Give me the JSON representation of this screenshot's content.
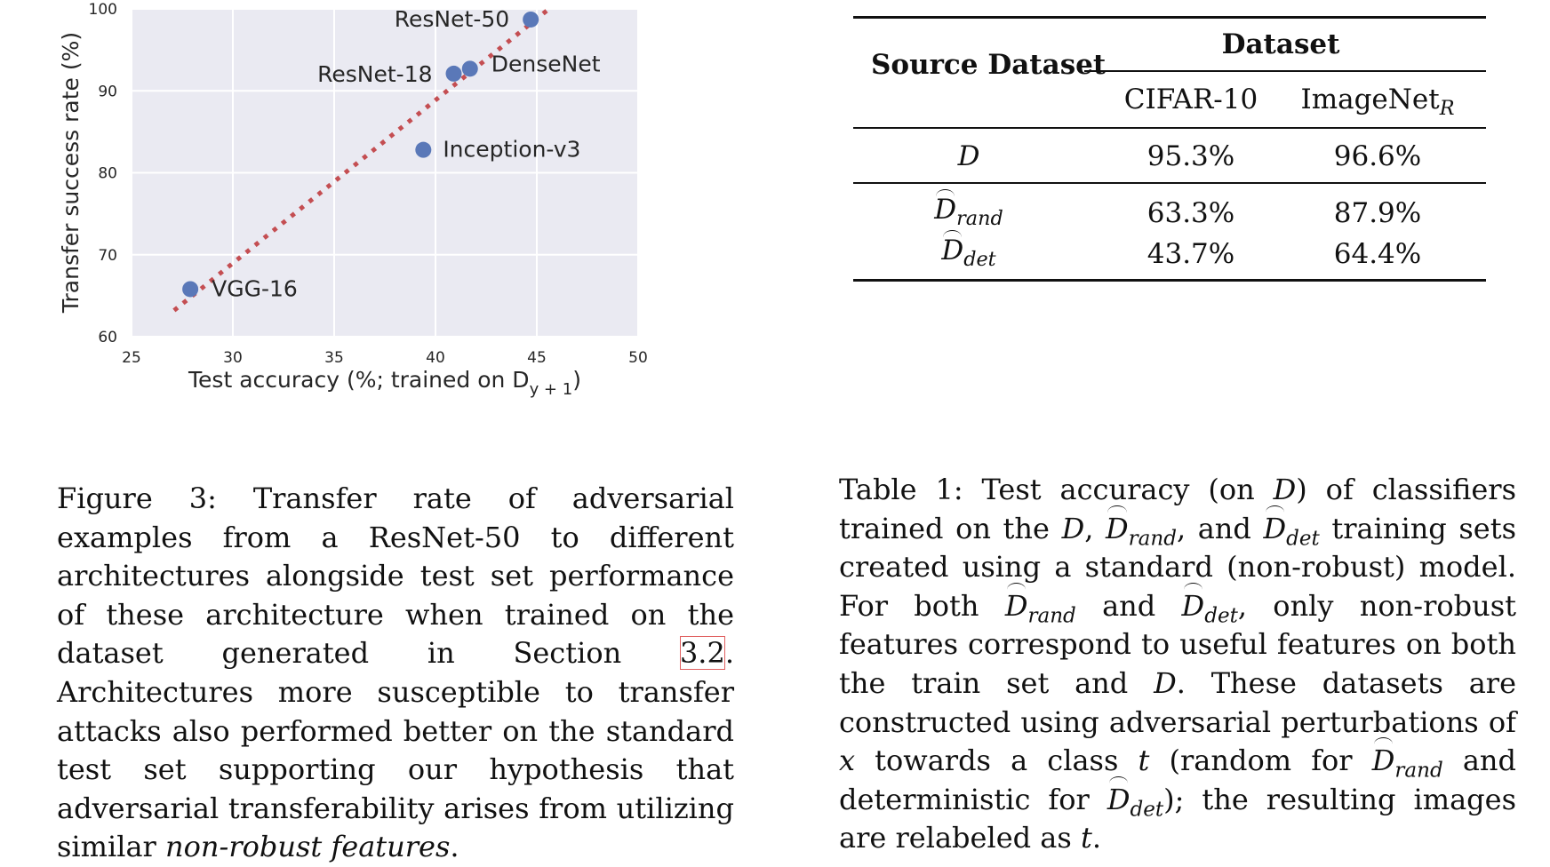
{
  "chart_data": {
    "type": "scatter",
    "xlabel": "Test accuracy (%; trained on D",
    "xlabel_sub": "y + 1",
    "xlabel_close": ")",
    "ylabel": "Transfer success rate (%)",
    "xlim": [
      25,
      50
    ],
    "ylim": [
      60,
      100
    ],
    "xticks": [
      25,
      30,
      35,
      40,
      45,
      50
    ],
    "yticks": [
      60,
      70,
      80,
      90,
      100
    ],
    "grid": true,
    "point_color": "#5a78b8",
    "line_color": "#c44e52",
    "background": "#eaeaf2",
    "points": [
      {
        "name": "ResNet-50",
        "x": 44.7,
        "y": 98.7
      },
      {
        "name": "ResNet-18",
        "x": 40.9,
        "y": 92.1
      },
      {
        "name": "DenseNet",
        "x": 41.7,
        "y": 92.7
      },
      {
        "name": "Inception-v3",
        "x": 39.4,
        "y": 82.8
      },
      {
        "name": "VGG-16",
        "x": 27.9,
        "y": 65.8
      }
    ],
    "fit_line": {
      "x": [
        27.1,
        45.6
      ],
      "y": [
        63.2,
        100
      ]
    }
  },
  "table": {
    "header_source": "Source Dataset",
    "header_group": "Dataset",
    "col1": "CIFAR-10",
    "col2_base": "ImageNet",
    "col2_sub": "R",
    "rows": [
      {
        "sym": "D",
        "sub": "",
        "v1": "95.3%",
        "v2": "96.6%"
      },
      {
        "sym": "D",
        "sub": "rand",
        "v1": "63.3%",
        "v2": "87.9%"
      },
      {
        "sym": "D",
        "sub": "det",
        "v1": "43.7%",
        "v2": "64.4%"
      }
    ]
  },
  "figure_caption": {
    "t1": "Figure 3:  Transfer rate of adversarial examples from a ResNet-50 to different architectures alongside test set performance of these architecture when trained on the dataset generated in Section ",
    "ref": "3.2",
    "t2": ".  Architectures more susceptible to transfer attacks also performed better on the standard test set supporting our hypothesis that adversarial transferability arises from utilizing similar ",
    "emph": "non-robust features",
    "t3": "."
  },
  "table_caption": {
    "a": "Table 1:  Test accuracy (on ",
    "b": ") of classifiers trained on the ",
    "c": ", ",
    "d": ", and ",
    "e": " training sets created using a standard (non-robust) model. For both ",
    "f": " and ",
    "g": ", only non-robust features correspond to useful features on both the train set and ",
    "h": ". These datasets are constructed using adversarial perturbations of ",
    "x": "x",
    "i": " towards a class ",
    "t": "t",
    "j": " (random for ",
    "k": " and deterministic for ",
    "l": "); the resulting images are relabeled as ",
    "m": ".",
    "sym": "D",
    "rand": "rand",
    "det": "det"
  }
}
